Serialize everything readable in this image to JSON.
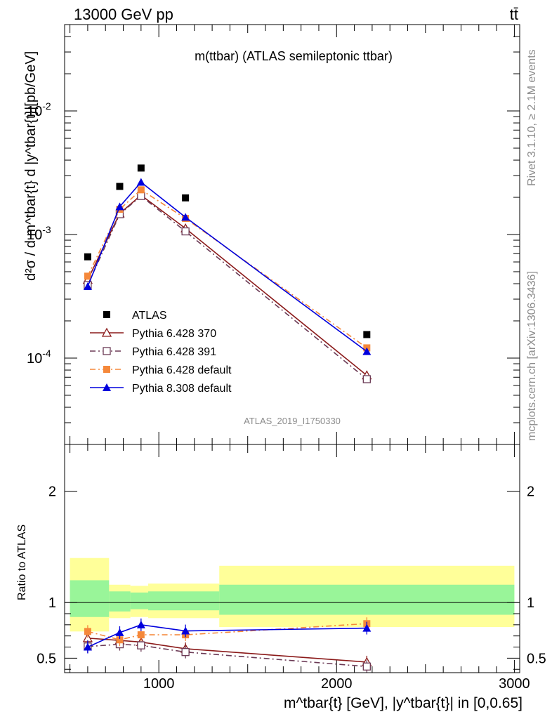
{
  "header": {
    "energy_label": "13000 GeV pp",
    "process_label": "tt̄"
  },
  "side": {
    "rivet_label": "Rivet 3.1.10, ≥ 2.1M events",
    "source_label": "mcplots.cern.ch [arXiv:1306.3436]"
  },
  "chart_data": [
    {
      "type": "line",
      "panel": "main",
      "title": "m(ttbar) (ATLAS semileptonic ttbar)",
      "ylabel": "d²σ / d m^tbar{t} d |y^tbar{t}|[pb/GeV]",
      "yscale": "log",
      "ylim": [
        2e-05,
        0.05
      ],
      "xlim": [
        470,
        3030
      ],
      "y_ticks": [
        "10^-4",
        "10^-3",
        "10^-2"
      ],
      "analysis_label": "ATLAS_2019_I1750330",
      "legend_position": "bottom-left",
      "x": [
        600,
        780,
        900,
        1150,
        2170
      ],
      "series": [
        {
          "name": "ATLAS",
          "color": "#000000",
          "marker": "square",
          "values": [
            0.00066,
            0.00245,
            0.00345,
            0.00198,
            0.000155
          ]
        },
        {
          "name": "Pythia 6.428 370",
          "color": "#8b1a1a",
          "marker": "triangle-open",
          "dash": "solid",
          "values": [
            0.00043,
            0.00148,
            0.00208,
            0.00112,
            7.25e-05
          ]
        },
        {
          "name": "Pythia 6.428 391",
          "color": "#6b3a55",
          "marker": "square-open",
          "dash": "dashdot",
          "values": [
            0.00039,
            0.00146,
            0.00205,
            0.00106,
            6.75e-05
          ]
        },
        {
          "name": "Pythia 6.428 default",
          "color": "#f5883a",
          "marker": "square",
          "dash": "dashdot",
          "values": [
            0.00046,
            0.0016,
            0.0023,
            0.00135,
            0.000121
          ]
        },
        {
          "name": "Pythia 8.308 default",
          "color": "#0000dd",
          "marker": "triangle",
          "dash": "solid",
          "values": [
            0.00038,
            0.00168,
            0.00265,
            0.00138,
            0.000113
          ]
        }
      ]
    },
    {
      "type": "line",
      "panel": "ratio",
      "ylabel": "Ratio to ATLAS",
      "xlabel": "m^tbar{t} [GeV], |y^tbar{t}| in [0,0.65]",
      "ylim": [
        0.37,
        2.42
      ],
      "xlim": [
        470,
        3030
      ],
      "y_ticks": [
        "0.5",
        "1",
        "2"
      ],
      "x_ticks": [
        "1000",
        "2000",
        "3000"
      ],
      "bands": {
        "edges": [
          500,
          720,
          840,
          940,
          1340,
          3000
        ],
        "yellow": [
          [
            0.74,
            1.4
          ],
          [
            0.86,
            1.16
          ],
          [
            0.87,
            1.15
          ],
          [
            0.86,
            1.17
          ],
          [
            0.78,
            1.33
          ]
        ],
        "green": [
          [
            0.87,
            1.2
          ],
          [
            0.92,
            1.1
          ],
          [
            0.94,
            1.09
          ],
          [
            0.93,
            1.1
          ],
          [
            0.89,
            1.16
          ]
        ]
      },
      "x": [
        600,
        780,
        900,
        1150,
        2170
      ],
      "series": [
        {
          "name": "Pythia 6.428 370",
          "values": [
            0.68,
            0.66,
            0.645,
            0.585,
            0.465
          ]
        },
        {
          "name": "Pythia 6.428 391",
          "values": [
            0.605,
            0.625,
            0.615,
            0.555,
            0.425
          ]
        },
        {
          "name": "Pythia 6.428 default",
          "values": [
            0.74,
            0.665,
            0.71,
            0.71,
            0.81
          ]
        },
        {
          "name": "Pythia 8.308 default",
          "values": [
            0.6,
            0.73,
            0.8,
            0.745,
            0.77
          ]
        }
      ]
    }
  ]
}
